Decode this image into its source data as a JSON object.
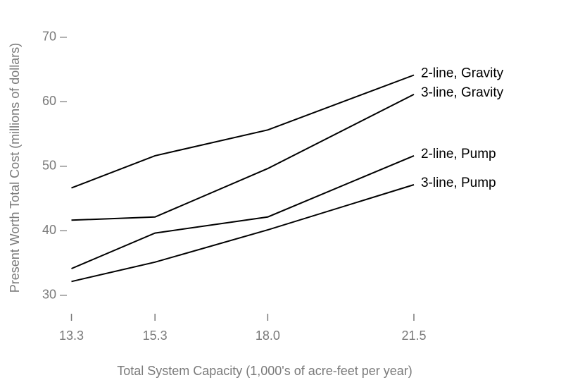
{
  "chart_data": {
    "type": "line",
    "title": "",
    "xlabel": "Total System Capacity (1,000's of acre-feet per year)",
    "ylabel": "Present Worth Total Cost (millions of dollars)",
    "x": [
      13.3,
      15.3,
      18.0,
      21.5
    ],
    "x_tick_labels": [
      "13.3",
      "15.3",
      "18.0",
      "21.5"
    ],
    "xlim": [
      12.6,
      24.4
    ],
    "y_ticks": [
      30,
      40,
      50,
      60,
      70
    ],
    "y_tick_labels": [
      "30 –",
      "40 –",
      "50 –",
      "60 –",
      "70 –"
    ],
    "ylim": [
      27,
      74
    ],
    "grid": false,
    "legend": "direct labels at line ends",
    "series": [
      {
        "name": "2-line, Gravity",
        "values": [
          46.5,
          51.5,
          55.5,
          64
        ]
      },
      {
        "name": "3-line, Gravity",
        "values": [
          41.5,
          42,
          49.5,
          61
        ]
      },
      {
        "name": "2-line, Pump",
        "values": [
          34,
          39.5,
          42,
          51.5
        ]
      },
      {
        "name": "3-line, Pump",
        "values": [
          32,
          35,
          40,
          47
        ]
      }
    ],
    "colors": {
      "line": "#000000",
      "axis_text": "#7a7a7a"
    }
  }
}
